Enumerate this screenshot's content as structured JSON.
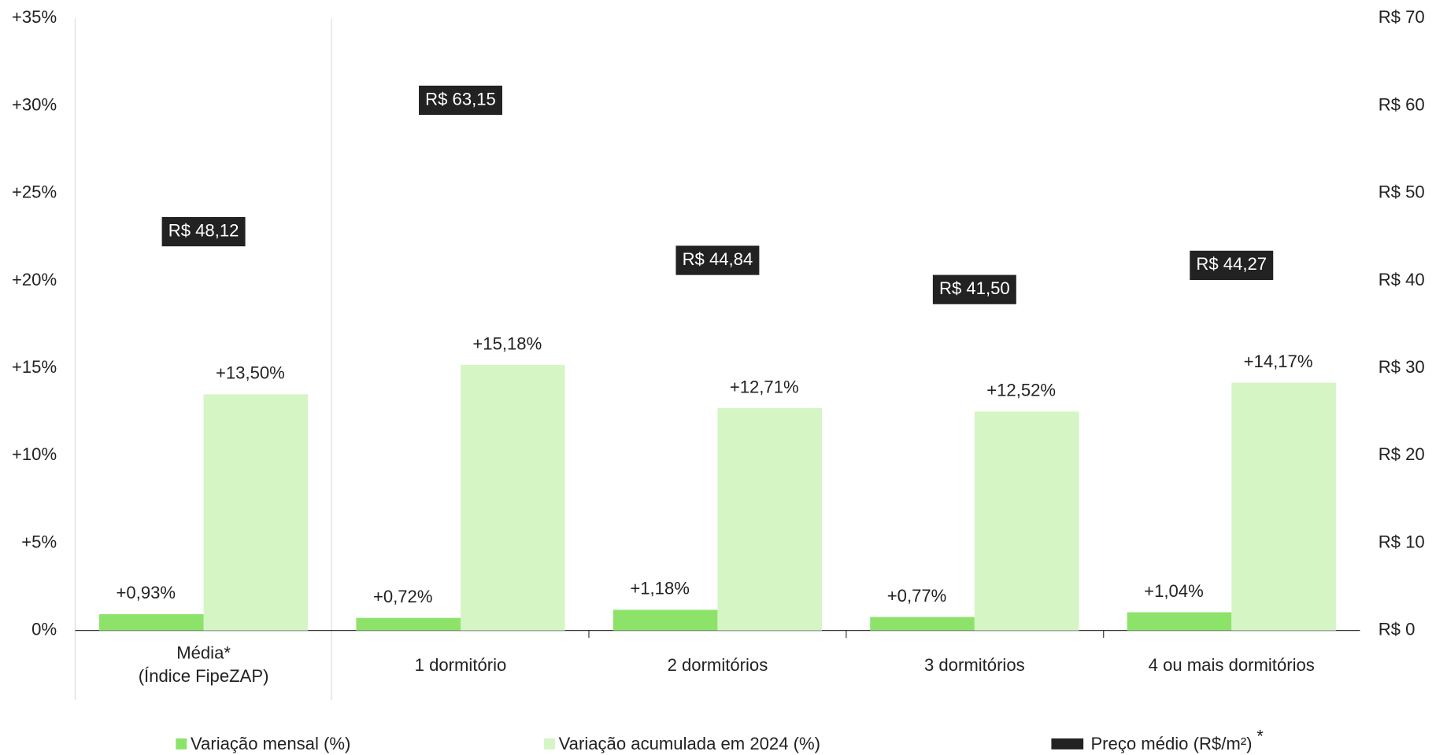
{
  "chart_data": {
    "type": "bar",
    "categories": [
      [
        "Média*",
        "(Índice FipeZAP)"
      ],
      [
        "1 dormitório"
      ],
      [
        "2 dormitórios"
      ],
      [
        "3 dormitórios"
      ],
      [
        "4 ou mais dormitórios"
      ]
    ],
    "series": [
      {
        "name": "Variação mensal (%)",
        "color": "#8de36a",
        "values": [
          0.93,
          0.72,
          1.18,
          0.77,
          1.04
        ],
        "value_labels": [
          "+0,93%",
          "+0,72%",
          "+1,18%",
          "+0,77%",
          "+1,04%"
        ]
      },
      {
        "name": "Variação acumulada em 2024 (%)",
        "color": "#d5f5c4",
        "values": [
          13.5,
          15.18,
          12.71,
          12.52,
          14.17
        ],
        "value_labels": [
          "+13,50%",
          "+15,18%",
          "+12,71%",
          "+12,52%",
          "+14,17%"
        ]
      },
      {
        "name": "Preço médio (R$/m²)",
        "color": "#222222",
        "axis": "y2",
        "values": [
          48.12,
          63.15,
          44.84,
          41.5,
          44.27
        ],
        "value_labels": [
          "R$ 48,12",
          "R$ 63,15",
          "R$ 44,84",
          "R$ 41,50",
          "R$ 44,27"
        ]
      }
    ],
    "price_note": "*",
    "ylim": [
      0,
      35
    ],
    "yticks": [
      {
        "value": 0,
        "label": "0%"
      },
      {
        "value": 5,
        "label": "+5%"
      },
      {
        "value": 10,
        "label": "+10%"
      },
      {
        "value": 15,
        "label": "+15%"
      },
      {
        "value": 20,
        "label": "+20%"
      },
      {
        "value": 25,
        "label": "+25%"
      },
      {
        "value": 30,
        "label": "+30%"
      },
      {
        "value": 35,
        "label": "+35%"
      }
    ],
    "y2lim": [
      0,
      70
    ],
    "y2ticks": [
      {
        "value": 0,
        "label": "R$ 0"
      },
      {
        "value": 10,
        "label": "R$ 10"
      },
      {
        "value": 20,
        "label": "R$ 20"
      },
      {
        "value": 30,
        "label": "R$ 30"
      },
      {
        "value": 40,
        "label": "R$ 40"
      },
      {
        "value": 50,
        "label": "R$ 50"
      },
      {
        "value": 60,
        "label": "R$ 60"
      },
      {
        "value": 70,
        "label": "R$ 70"
      }
    ],
    "grid": false
  }
}
